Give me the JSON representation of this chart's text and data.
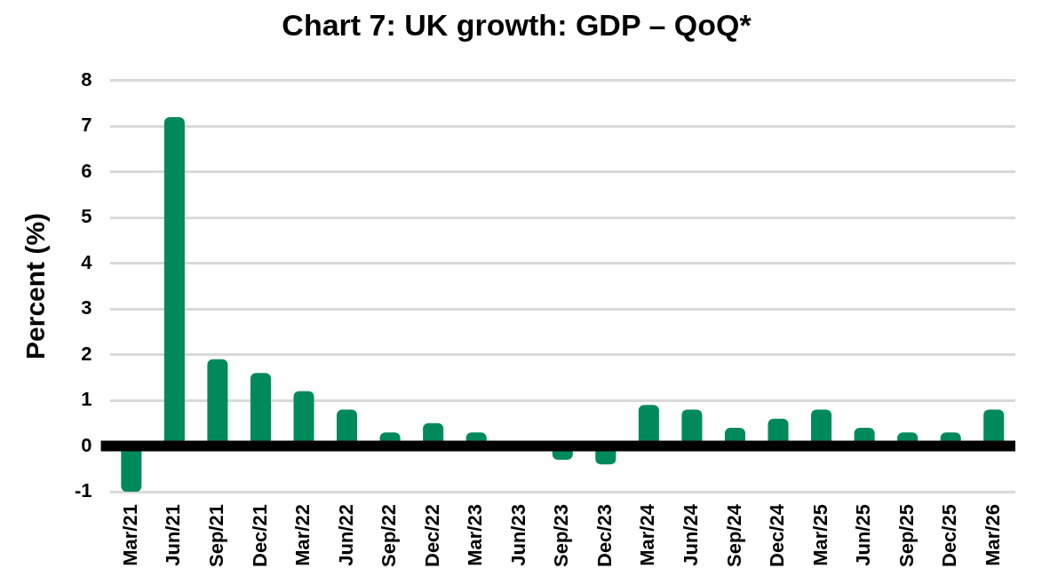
{
  "chart_data": {
    "type": "bar",
    "title": "Chart 7: UK growth: GDP – QoQ*",
    "ylabel": "Percent (%)",
    "categories": [
      "Mar/21",
      "Jun/21",
      "Sep/21",
      "Dec/21",
      "Mar/22",
      "Jun/22",
      "Sep/22",
      "Dec/22",
      "Mar/23",
      "Jun/23",
      "Sep/23",
      "Dec/23",
      "Mar/24",
      "Jun/24",
      "Sep/24",
      "Dec/24",
      "Mar/25",
      "Jun/25",
      "Sep/25",
      "Dec/25",
      "Mar/26"
    ],
    "values": [
      -1.0,
      7.2,
      1.9,
      1.6,
      1.2,
      0.8,
      0.3,
      0.5,
      0.3,
      0.0,
      -0.3,
      -0.4,
      0.9,
      0.8,
      0.4,
      0.6,
      0.8,
      0.4,
      0.3,
      0.3,
      0.8
    ],
    "color": "#008a5c",
    "ylim": [
      -1,
      8
    ],
    "yticks": [
      -1,
      0,
      1,
      2,
      3,
      4,
      5,
      6,
      7,
      8
    ],
    "grid": "y",
    "ref_lines": [
      {
        "axis": "y",
        "value": 0,
        "color": "#000000"
      }
    ]
  }
}
